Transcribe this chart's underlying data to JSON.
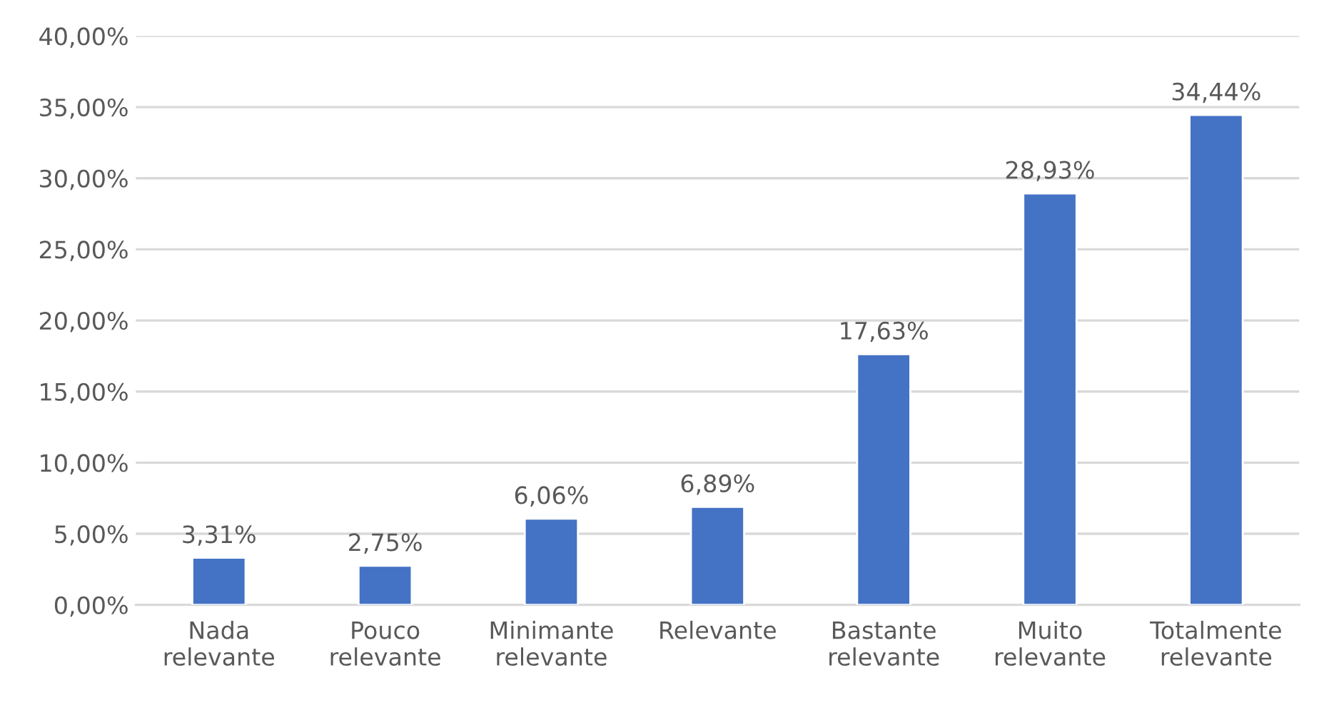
{
  "chart_data": {
    "type": "bar",
    "categories": [
      "Nada\nrelevante",
      "Pouco\nrelevante",
      "Minimante\nrelevante",
      "Relevante",
      "Bastante\nrelevante",
      "Muito\nrelevante",
      "Totalmente\nrelevante"
    ],
    "values": [
      3.31,
      2.75,
      6.06,
      6.89,
      17.63,
      28.93,
      34.44
    ],
    "value_labels": [
      "3,31%",
      "2,75%",
      "6,06%",
      "6,89%",
      "17,63%",
      "28,93%",
      "34,44%"
    ],
    "color": "#4472c4",
    "ylim": [
      0,
      40
    ],
    "yticks": [
      {
        "value": 0,
        "label": "0,00%"
      },
      {
        "value": 5,
        "label": "5,00%"
      },
      {
        "value": 10,
        "label": "10,00%"
      },
      {
        "value": 15,
        "label": "15,00%"
      },
      {
        "value": 20,
        "label": "20,00%"
      },
      {
        "value": 25,
        "label": "25,00%"
      },
      {
        "value": 30,
        "label": "30,00%"
      },
      {
        "value": 35,
        "label": "35,00%"
      },
      {
        "value": 40,
        "label": "40,00%"
      }
    ],
    "grid": "y"
  }
}
